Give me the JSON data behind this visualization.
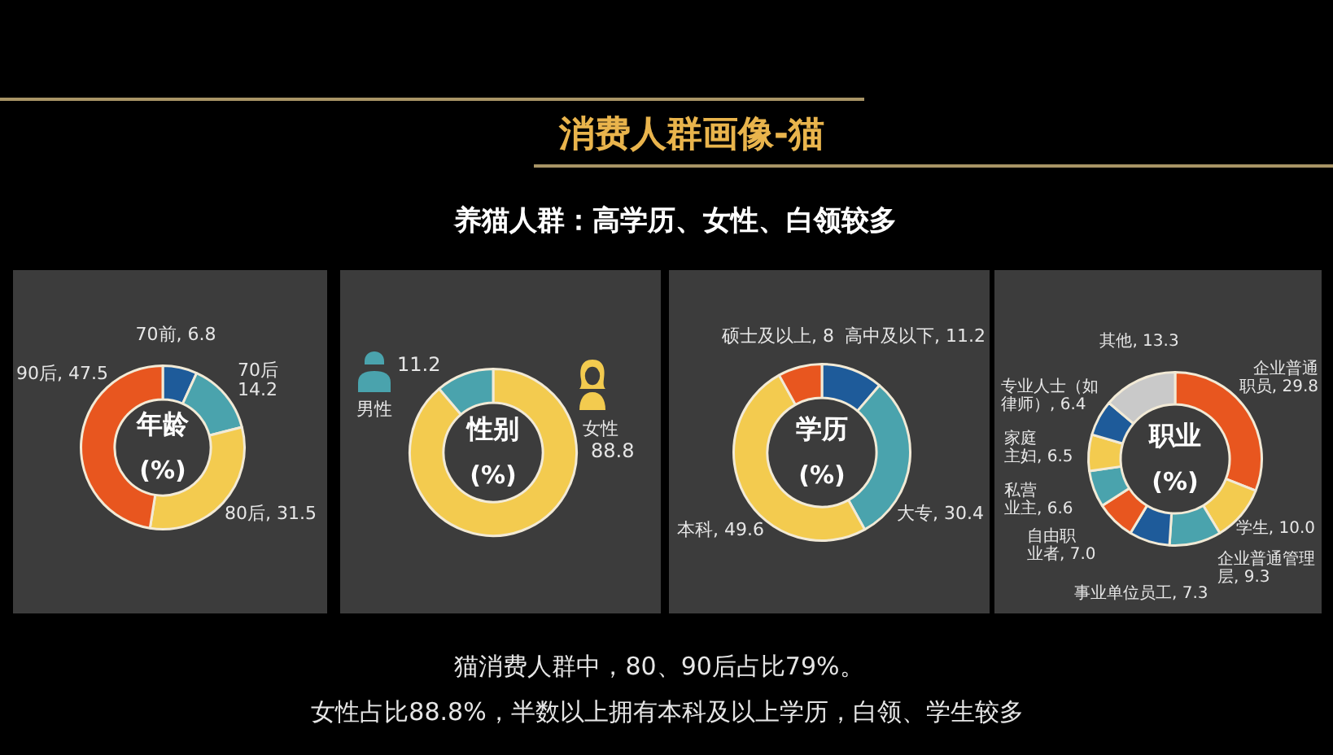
{
  "chart_data": [
    {
      "type": "other",
      "title": "消费人群画像-猫",
      "subtitle": "养猫人群：高学历、女性、白领较多"
    },
    {
      "type": "donut",
      "title": "年龄",
      "subtitle": "(%)",
      "categories": [
        "70前",
        "70后",
        "80后",
        "90后"
      ],
      "values": [
        6.8,
        14.2,
        31.5,
        47.5
      ],
      "value_labels": [
        "6.8",
        "14.2",
        "31.5",
        "47.5"
      ],
      "colors": [
        "#1e5b9a",
        "#4aa3ad",
        "#f3cb4f",
        "#e8561f"
      ]
    },
    {
      "type": "donut",
      "title": "性别",
      "subtitle": "(%)",
      "categories": [
        "女性",
        "男性"
      ],
      "values": [
        88.8,
        11.2
      ],
      "value_labels": [
        "88.8",
        "11.2"
      ],
      "colors": [
        "#f3cb4f",
        "#4aa3ad"
      ],
      "legend": "top"
    },
    {
      "type": "donut",
      "title": "学历",
      "subtitle": "(%)",
      "categories": [
        "高中及以下",
        "大专",
        "本科",
        "硕士及以上"
      ],
      "values": [
        11.2,
        30.4,
        49.6,
        8
      ],
      "value_labels": [
        "11.2",
        "30.4",
        "49.6",
        "8"
      ],
      "colors": [
        "#1e5b9a",
        "#4aa3ad",
        "#f3cb4f",
        "#e8561f"
      ]
    },
    {
      "type": "donut",
      "title": "职业",
      "subtitle": "(%)",
      "categories": [
        "企业普通职员",
        "学生",
        "企业普通管理层",
        "事业单位员工",
        "自由职业者",
        "私营业主",
        "家庭主妇",
        "专业人士（如律师）",
        "其他"
      ],
      "values": [
        29.8,
        10.0,
        9.3,
        7.3,
        7.0,
        6.6,
        6.5,
        6.4,
        13.3
      ],
      "value_labels": [
        "29.8",
        "10.0",
        "9.3",
        "7.3",
        "7.0",
        "6.6",
        "6.5",
        "6.4",
        "13.3"
      ],
      "colors": [
        "#e8561f",
        "#f3cb4f",
        "#4aa3ad",
        "#1e5b9a",
        "#e8561f",
        "#4aa3ad",
        "#f3cb4f",
        "#1e5b9a",
        "#c9c9c9"
      ]
    },
    {
      "type": "other",
      "annotations": [
        "猫消费人群中，80、90后占比79%。",
        "女性占比88.8%，半数以上拥有本科及以上学历，白领、学生较多"
      ]
    }
  ]
}
